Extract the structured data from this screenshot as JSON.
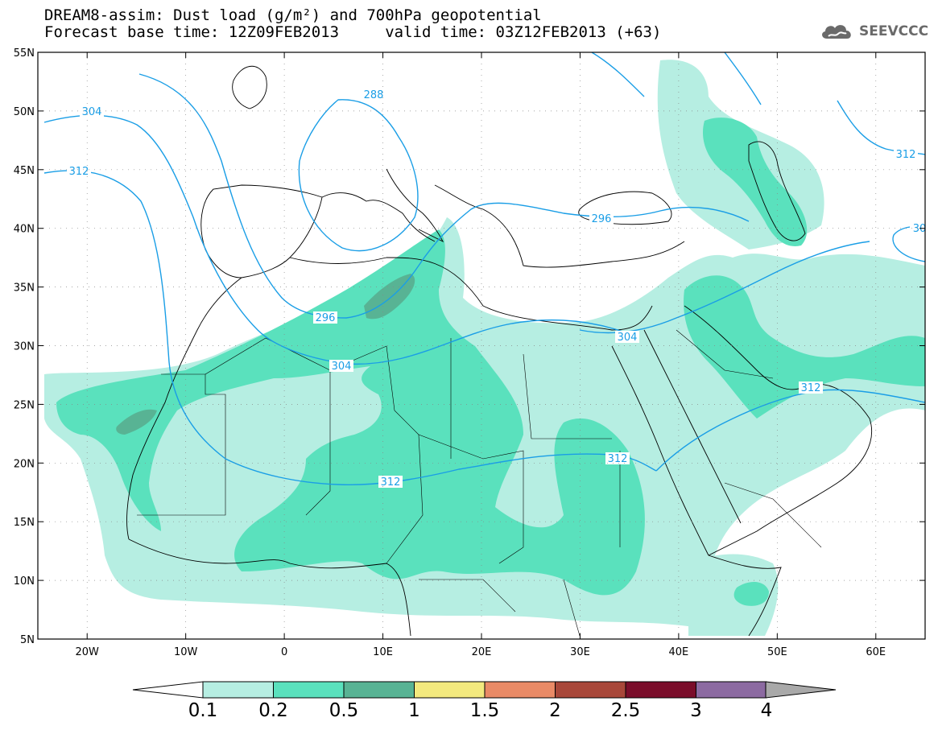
{
  "header": {
    "title_line1": "DREAM8-assim: Dust load (g/m²) and 700hPa geopotential",
    "title_line2": "Forecast base time: 12Z09FEB2013     valid time: 03Z12FEB2013 (+63)",
    "logo_text": "SEEVCCC"
  },
  "map": {
    "lon_range": [
      -25,
      65
    ],
    "lat_range": [
      5,
      55
    ],
    "lat_labels": [
      "55N",
      "50N",
      "45N",
      "40N",
      "35N",
      "30N",
      "25N",
      "20N",
      "15N",
      "10N",
      "5N"
    ],
    "lon_labels": [
      "20W",
      "10W",
      "0",
      "10E",
      "20E",
      "30E",
      "40E",
      "50E",
      "60E"
    ],
    "contour_labels": [
      "304",
      "312",
      "288",
      "296",
      "296",
      "304",
      "304",
      "312",
      "312",
      "312",
      "312",
      "30"
    ],
    "dust_colors": {
      "c01": "#b6eee2",
      "c02": "#5ae1bd",
      "c05": "#58b394"
    },
    "contour_color": "#1a9ee6"
  },
  "colorbar": {
    "labels": [
      "0.1",
      "0.2",
      "0.5",
      "1",
      "1.5",
      "2",
      "2.5",
      "3",
      "4"
    ],
    "colors": [
      "#ffffff",
      "#b6eee2",
      "#5ae1bd",
      "#58b394",
      "#f3e97e",
      "#e98a66",
      "#a84739",
      "#7a0d2a",
      "#8c6aa1",
      "#a9a9a9"
    ]
  }
}
